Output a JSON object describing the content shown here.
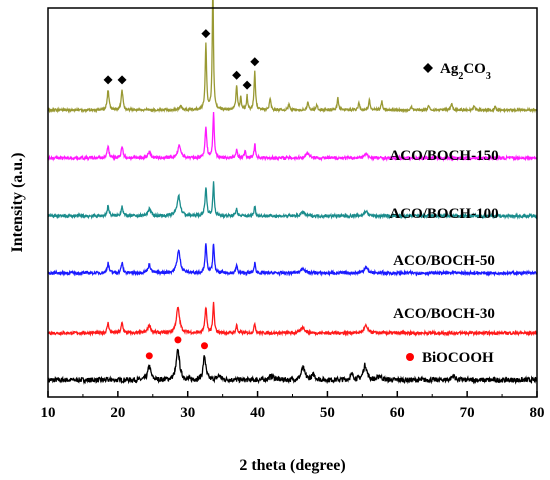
{
  "chart_data": {
    "type": "line",
    "xlabel": "2 theta (degree)",
    "ylabel": "Intensity (a.u.)",
    "xlim": [
      10,
      80
    ],
    "xticks": [
      10,
      20,
      30,
      40,
      50,
      60,
      70,
      80
    ],
    "y_ticks_shown": false,
    "grid": false,
    "colors": {
      "black": "#000000",
      "red": "#ff1a1a",
      "blue": "#1a1aff",
      "teal": "#1a8c8c",
      "magenta": "#ff1aff",
      "olive": "#999933",
      "marker_red": "#ff0000"
    },
    "series": [
      {
        "label": "",
        "color": "#000000",
        "baseline": 0,
        "noise": 2.5,
        "peaks": [
          {
            "x": 24.5,
            "h": 14,
            "w": 0.25
          },
          {
            "x": 28.6,
            "h": 30,
            "w": 0.28
          },
          {
            "x": 32.4,
            "h": 24,
            "w": 0.22
          },
          {
            "x": 34.5,
            "h": 4,
            "w": 0.3
          },
          {
            "x": 42.0,
            "h": 4,
            "w": 0.4
          },
          {
            "x": 46.5,
            "h": 12,
            "w": 0.3
          },
          {
            "x": 48.0,
            "h": 5,
            "w": 0.3
          },
          {
            "x": 53.5,
            "h": 5,
            "w": 0.3
          },
          {
            "x": 55.4,
            "h": 15,
            "w": 0.3
          },
          {
            "x": 57.5,
            "h": 4,
            "w": 0.3
          },
          {
            "x": 68.0,
            "h": 4,
            "w": 0.3
          }
        ],
        "markers": [
          24.5,
          28.6,
          32.4
        ],
        "marker_type": "circle"
      },
      {
        "label": "ACO/BOCH-30",
        "color": "#ff1a1a",
        "baseline": 47,
        "noise": 1.5,
        "peaks": [
          {
            "x": 18.6,
            "h": 10,
            "w": 0.15
          },
          {
            "x": 20.6,
            "h": 10,
            "w": 0.15
          },
          {
            "x": 24.5,
            "h": 8,
            "w": 0.25
          },
          {
            "x": 28.6,
            "h": 25,
            "w": 0.28
          },
          {
            "x": 32.6,
            "h": 26,
            "w": 0.15
          },
          {
            "x": 33.7,
            "h": 30,
            "w": 0.12
          },
          {
            "x": 37.0,
            "h": 8,
            "w": 0.12
          },
          {
            "x": 39.6,
            "h": 10,
            "w": 0.12
          },
          {
            "x": 46.5,
            "h": 6,
            "w": 0.3
          },
          {
            "x": 55.5,
            "h": 7,
            "w": 0.3
          }
        ]
      },
      {
        "label": "ACO/BOCH-50",
        "color": "#1a1aff",
        "baseline": 107,
        "noise": 1.5,
        "peaks": [
          {
            "x": 18.6,
            "h": 10,
            "w": 0.15
          },
          {
            "x": 20.6,
            "h": 10,
            "w": 0.15
          },
          {
            "x": 24.5,
            "h": 8,
            "w": 0.25
          },
          {
            "x": 28.7,
            "h": 22,
            "w": 0.28
          },
          {
            "x": 32.6,
            "h": 28,
            "w": 0.15
          },
          {
            "x": 33.7,
            "h": 30,
            "w": 0.12
          },
          {
            "x": 37.0,
            "h": 8,
            "w": 0.12
          },
          {
            "x": 39.6,
            "h": 10,
            "w": 0.12
          },
          {
            "x": 46.5,
            "h": 5,
            "w": 0.3
          },
          {
            "x": 55.5,
            "h": 6,
            "w": 0.3
          }
        ]
      },
      {
        "label": "ACO/BOCH-100",
        "color": "#1a8c8c",
        "baseline": 164,
        "noise": 1.5,
        "peaks": [
          {
            "x": 18.6,
            "h": 10,
            "w": 0.15
          },
          {
            "x": 20.6,
            "h": 10,
            "w": 0.15
          },
          {
            "x": 24.5,
            "h": 7,
            "w": 0.25
          },
          {
            "x": 28.7,
            "h": 20,
            "w": 0.28
          },
          {
            "x": 32.6,
            "h": 28,
            "w": 0.15
          },
          {
            "x": 33.7,
            "h": 33,
            "w": 0.12
          },
          {
            "x": 37.0,
            "h": 8,
            "w": 0.12
          },
          {
            "x": 39.6,
            "h": 10,
            "w": 0.12
          },
          {
            "x": 46.5,
            "h": 4,
            "w": 0.3
          },
          {
            "x": 55.5,
            "h": 5,
            "w": 0.3
          }
        ]
      },
      {
        "label": "ACO/BOCH-150",
        "color": "#ff1aff",
        "baseline": 222,
        "noise": 1.5,
        "peaks": [
          {
            "x": 18.6,
            "h": 12,
            "w": 0.15
          },
          {
            "x": 20.6,
            "h": 12,
            "w": 0.15
          },
          {
            "x": 24.5,
            "h": 6,
            "w": 0.25
          },
          {
            "x": 28.8,
            "h": 12,
            "w": 0.28
          },
          {
            "x": 32.6,
            "h": 30,
            "w": 0.15
          },
          {
            "x": 33.7,
            "h": 45,
            "w": 0.12
          },
          {
            "x": 37.0,
            "h": 9,
            "w": 0.12
          },
          {
            "x": 38.2,
            "h": 7,
            "w": 0.12
          },
          {
            "x": 39.6,
            "h": 14,
            "w": 0.12
          },
          {
            "x": 47.2,
            "h": 5,
            "w": 0.3
          },
          {
            "x": 55.5,
            "h": 4,
            "w": 0.3
          }
        ]
      },
      {
        "label": "",
        "color": "#999933",
        "baseline": 270,
        "noise": 1.2,
        "peaks": [
          {
            "x": 18.6,
            "h": 20,
            "w": 0.15
          },
          {
            "x": 20.6,
            "h": 20,
            "w": 0.15
          },
          {
            "x": 29.0,
            "h": 4,
            "w": 0.2
          },
          {
            "x": 32.6,
            "h": 65,
            "w": 0.12
          },
          {
            "x": 33.6,
            "h": 128,
            "w": 0.1
          },
          {
            "x": 37.0,
            "h": 24,
            "w": 0.12
          },
          {
            "x": 37.6,
            "h": 14,
            "w": 0.1
          },
          {
            "x": 38.5,
            "h": 14,
            "w": 0.1
          },
          {
            "x": 39.6,
            "h": 38,
            "w": 0.12
          },
          {
            "x": 41.8,
            "h": 12,
            "w": 0.12
          },
          {
            "x": 44.5,
            "h": 6,
            "w": 0.12
          },
          {
            "x": 47.2,
            "h": 8,
            "w": 0.12
          },
          {
            "x": 48.5,
            "h": 5,
            "w": 0.12
          },
          {
            "x": 51.5,
            "h": 12,
            "w": 0.12
          },
          {
            "x": 54.5,
            "h": 8,
            "w": 0.12
          },
          {
            "x": 56.0,
            "h": 10,
            "w": 0.12
          },
          {
            "x": 57.8,
            "h": 9,
            "w": 0.12
          },
          {
            "x": 62.0,
            "h": 4,
            "w": 0.12
          },
          {
            "x": 64.5,
            "h": 4,
            "w": 0.12
          },
          {
            "x": 67.8,
            "h": 6,
            "w": 0.15
          },
          {
            "x": 71.0,
            "h": 4,
            "w": 0.12
          },
          {
            "x": 74.0,
            "h": 3,
            "w": 0.12
          }
        ],
        "markers": [
          18.6,
          20.6,
          32.6,
          33.6,
          37.0,
          38.5,
          39.6
        ],
        "marker_type": "diamond"
      }
    ],
    "legend": [
      {
        "symbol": "diamond",
        "color": "#000000",
        "label": "Ag",
        "sub": "2",
        "label2": "CO",
        "sub2": "3"
      },
      {
        "symbol": "circle",
        "color": "#ff0000",
        "label": "BiOCOOH"
      }
    ]
  }
}
